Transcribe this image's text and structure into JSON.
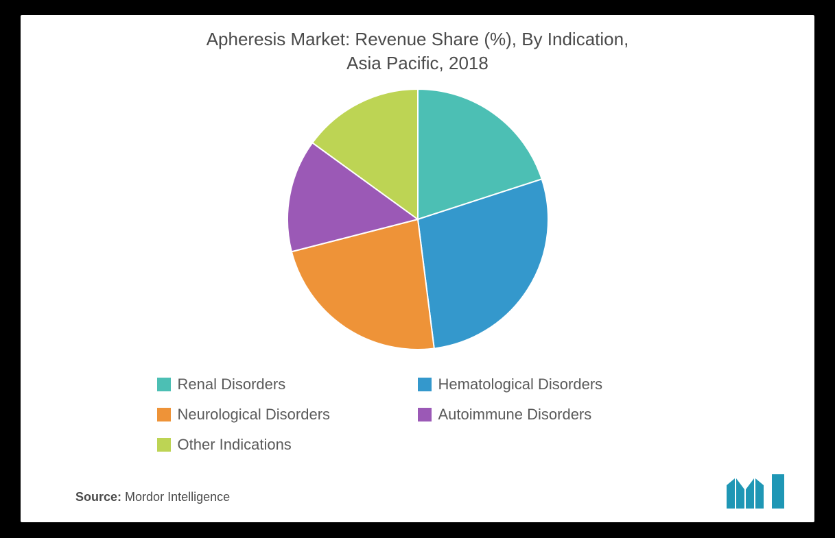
{
  "chart": {
    "type": "pie",
    "title_line1": "Apheresis Market: Revenue Share (%), By Indication,",
    "title_line2": "Asia Pacific, 2018",
    "title_fontsize": 26,
    "title_color": "#4a4a4a",
    "slices": [
      {
        "label": "Renal Disorders",
        "value": 20,
        "color": "#4cbfb4"
      },
      {
        "label": "Hematological Disorders",
        "value": 28,
        "color": "#3498cc"
      },
      {
        "label": "Neurological Disorders",
        "value": 23,
        "color": "#ee9338"
      },
      {
        "label": "Autoimmune Disorders",
        "value": 14,
        "color": "#9b59b6"
      },
      {
        "label": "Other Indications",
        "value": 15,
        "color": "#bdd454"
      }
    ],
    "pie_radius": 190,
    "slice_border_color": "#ffffff",
    "slice_border_width": 2,
    "background_color": "#ffffff",
    "card_background": "#ffffff",
    "page_background": "#000000",
    "legend_fontsize": 22,
    "legend_color": "#5a5a5a",
    "swatch_size": 20
  },
  "source": {
    "label": "Source:",
    "value": "Mordor Intelligence",
    "fontsize": 18,
    "color": "#4a4a4a"
  },
  "logo": {
    "bar_color": "#1f97b5",
    "width": 90,
    "height": 56
  }
}
